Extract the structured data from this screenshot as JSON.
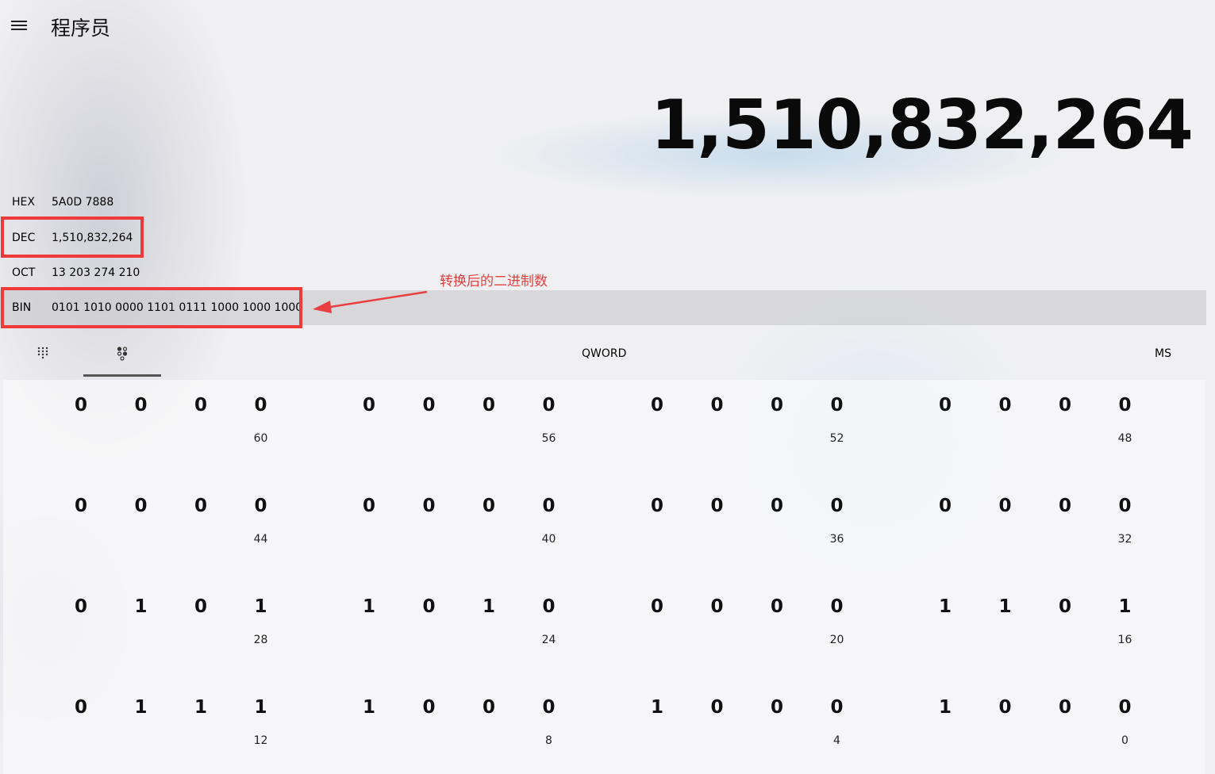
{
  "header": {
    "title": "程序员",
    "menu_icon": "hamburger-icon"
  },
  "display": {
    "value": "1,510,832,264"
  },
  "radix": [
    {
      "name": "HEX",
      "value": "5A0D 7888"
    },
    {
      "name": "DEC",
      "value": "1,510,832,264"
    },
    {
      "name": "OCT",
      "value": "13 203 274 210"
    },
    {
      "name": "BIN",
      "value": "0101 1010 0000 1101 0111 1000 1000 1000"
    }
  ],
  "annotation": {
    "text": "转换后的二进制数",
    "color": "#e84040"
  },
  "toolbar": {
    "keypad_icon": "full-keypad-icon",
    "bit_toggle_icon": "bit-toggling-keypad-icon",
    "word_size": "QWORD",
    "memory": "MS"
  },
  "bits": {
    "rows": [
      {
        "groups": [
          {
            "bits": [
              "0",
              "0",
              "0",
              "0"
            ],
            "position": "60"
          },
          {
            "bits": [
              "0",
              "0",
              "0",
              "0"
            ],
            "position": "56"
          },
          {
            "bits": [
              "0",
              "0",
              "0",
              "0"
            ],
            "position": "52"
          },
          {
            "bits": [
              "0",
              "0",
              "0",
              "0"
            ],
            "position": "48"
          }
        ]
      },
      {
        "groups": [
          {
            "bits": [
              "0",
              "0",
              "0",
              "0"
            ],
            "position": "44"
          },
          {
            "bits": [
              "0",
              "0",
              "0",
              "0"
            ],
            "position": "40"
          },
          {
            "bits": [
              "0",
              "0",
              "0",
              "0"
            ],
            "position": "36"
          },
          {
            "bits": [
              "0",
              "0",
              "0",
              "0"
            ],
            "position": "32"
          }
        ]
      },
      {
        "groups": [
          {
            "bits": [
              "0",
              "1",
              "0",
              "1"
            ],
            "position": "28"
          },
          {
            "bits": [
              "1",
              "0",
              "1",
              "0"
            ],
            "position": "24"
          },
          {
            "bits": [
              "0",
              "0",
              "0",
              "0"
            ],
            "position": "20"
          },
          {
            "bits": [
              "1",
              "1",
              "0",
              "1"
            ],
            "position": "16"
          }
        ]
      },
      {
        "groups": [
          {
            "bits": [
              "0",
              "1",
              "1",
              "1"
            ],
            "position": "12"
          },
          {
            "bits": [
              "1",
              "0",
              "0",
              "0"
            ],
            "position": "8"
          },
          {
            "bits": [
              "1",
              "0",
              "0",
              "0"
            ],
            "position": "4"
          },
          {
            "bits": [
              "1",
              "0",
              "0",
              "0"
            ],
            "position": "0"
          }
        ]
      }
    ]
  }
}
